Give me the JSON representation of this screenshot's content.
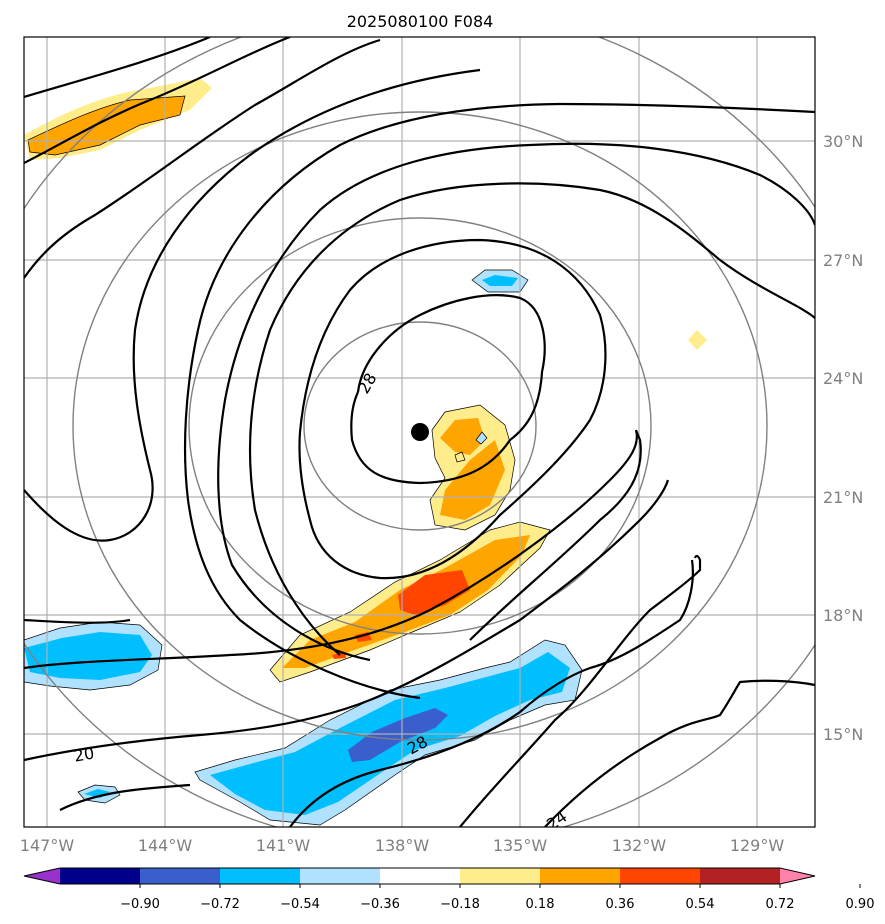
{
  "title": "2025080100 F084",
  "map": {
    "lon_range": [
      -147.8,
      -127.8
    ],
    "lat_range": [
      12.7,
      32.7
    ],
    "lon_ticks": [
      "147°W",
      "144°W",
      "141°W",
      "138°W",
      "135°W",
      "132°W",
      "129°W"
    ],
    "lat_ticks": [
      "15°N",
      "18°N",
      "21°N",
      "24°N",
      "27°N",
      "30°N"
    ],
    "storm_center": {
      "lon": -137.9,
      "lat": 22.6
    },
    "range_rings_km": [
      250,
      500,
      750,
      1000
    ],
    "contour_labels": [
      "28",
      "20",
      "28",
      "24"
    ],
    "grid": true
  },
  "colorbar": {
    "ticks": [
      "−0.90",
      "−0.72",
      "−0.54",
      "−0.36",
      "−0.18",
      "0.18",
      "0.36",
      "0.54",
      "0.72",
      "0.90"
    ],
    "colors": [
      "#9932cc",
      "#00008b",
      "#3a5fcd",
      "#00bfff",
      "#b0e2ff",
      "#ffffff",
      "#ffec8b",
      "#ffa500",
      "#ff4500",
      "#b22222",
      "#ff82ab"
    ],
    "extend": "both"
  },
  "shading_colors": {
    "light_yellow": "#ffec8b",
    "orange": "#ffa500",
    "red_orange": "#ff4500",
    "light_blue": "#b0e2ff",
    "blue": "#00bfff",
    "royal_blue": "#3a5fcd"
  }
}
